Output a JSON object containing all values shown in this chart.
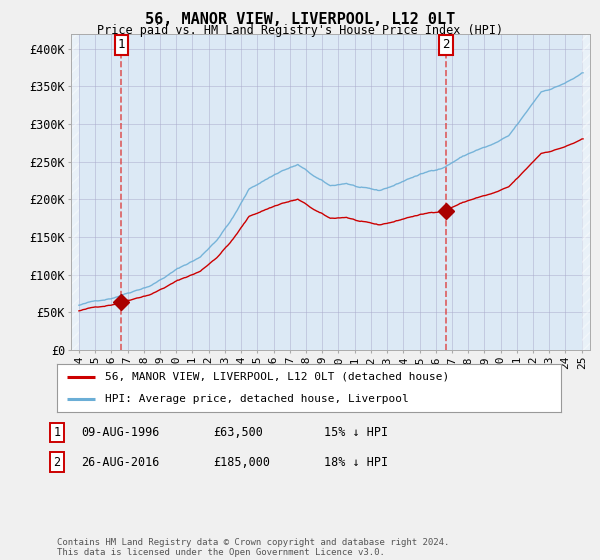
{
  "title": "56, MANOR VIEW, LIVERPOOL, L12 0LT",
  "subtitle": "Price paid vs. HM Land Registry's House Price Index (HPI)",
  "legend_label1": "56, MANOR VIEW, LIVERPOOL, L12 0LT (detached house)",
  "legend_label2": "HPI: Average price, detached house, Liverpool",
  "transaction1_date": "09-AUG-1996",
  "transaction1_price": "£63,500",
  "transaction1_hpi": "15% ↓ HPI",
  "transaction2_date": "26-AUG-2016",
  "transaction2_price": "£185,000",
  "transaction2_hpi": "18% ↓ HPI",
  "footer": "Contains HM Land Registry data © Crown copyright and database right 2024.\nThis data is licensed under the Open Government Licence v3.0.",
  "hpi_color": "#6baed6",
  "price_color": "#cc0000",
  "marker_color": "#aa0000",
  "plot_bg_color": "#dce9f5",
  "background_color": "#f0f0f0",
  "grid_color": "#aaaacc",
  "annotation_border": "#cc0000",
  "vline_color": "#dd4444",
  "ylim": [
    0,
    420000
  ],
  "xlim_min": 1993.5,
  "xlim_max": 2025.5,
  "yticks": [
    0,
    50000,
    100000,
    150000,
    200000,
    250000,
    300000,
    350000,
    400000
  ],
  "ytick_labels": [
    "£0",
    "£50K",
    "£100K",
    "£150K",
    "£200K",
    "£250K",
    "£300K",
    "£350K",
    "£400K"
  ],
  "t1_year": 1996.62,
  "t1_price": 63500,
  "t2_year": 2016.62,
  "t2_price": 185000
}
